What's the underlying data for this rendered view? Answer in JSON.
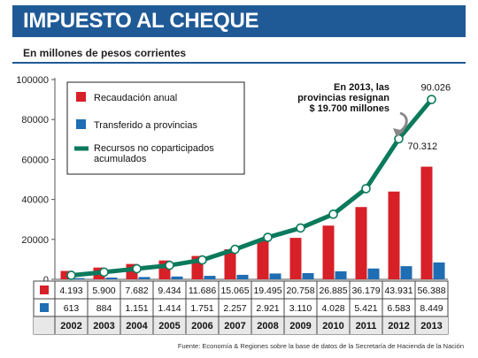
{
  "title": "IMPUESTO AL CHEQUE",
  "subtitle": "En millones de pesos corrientes",
  "source": "Fuente: Economía & Regiones sobre la base de datos de la Secretaría de Hacienda de la Nación",
  "annotation": [
    "En 2013, las",
    "provincias resignan",
    "$ 19.700 millones"
  ],
  "colors": {
    "recaudacion": "#d72027",
    "transferido": "#1f6db2",
    "recursos": "#0b7a5c",
    "title_bg": "#1f5a96"
  },
  "chart_data": {
    "type": "bar",
    "categories": [
      "2002",
      "2003",
      "2004",
      "2005",
      "2006",
      "2007",
      "2008",
      "2009",
      "2010",
      "2011",
      "2012",
      "2013"
    ],
    "ylim": [
      0,
      100000
    ],
    "yticks": [
      0,
      20000,
      40000,
      60000,
      80000,
      100000
    ],
    "ytick_labels": [
      "0",
      "20000",
      "40000",
      "60000",
      "80000",
      "100000"
    ],
    "series": [
      {
        "name": "Recaudación anual",
        "type": "bar",
        "values": [
          4193,
          5900,
          7682,
          9434,
          11686,
          15065,
          19495,
          20758,
          26885,
          36179,
          43931,
          56388
        ],
        "labels": [
          "4.193",
          "5.900",
          "7.682",
          "9.434",
          "11.686",
          "15.065",
          "19.495",
          "20.758",
          "26.885",
          "36.179",
          "43.931",
          "56.388"
        ]
      },
      {
        "name": "Transferido a provincias",
        "type": "bar",
        "values": [
          613,
          884,
          1151,
          1414,
          1751,
          2257,
          2921,
          3110,
          4028,
          5421,
          6583,
          8449
        ],
        "labels": [
          "613",
          "884",
          "1.151",
          "1.414",
          "1.751",
          "2.257",
          "2.921",
          "3.110",
          "4.028",
          "5.421",
          "6.583",
          "8.449"
        ]
      },
      {
        "name": "Recursos no coparticipados acumulados",
        "legend_lines": [
          "Recursos no coparticipados",
          "acumulados"
        ],
        "type": "line",
        "values": [
          2000,
          3600,
          5300,
          7000,
          9700,
          15000,
          21000,
          25700,
          32600,
          45400,
          70312,
          90026
        ]
      }
    ],
    "point_labels": [
      {
        "index": 10,
        "text": "70.312"
      },
      {
        "index": 11,
        "text": "90.026"
      }
    ]
  }
}
